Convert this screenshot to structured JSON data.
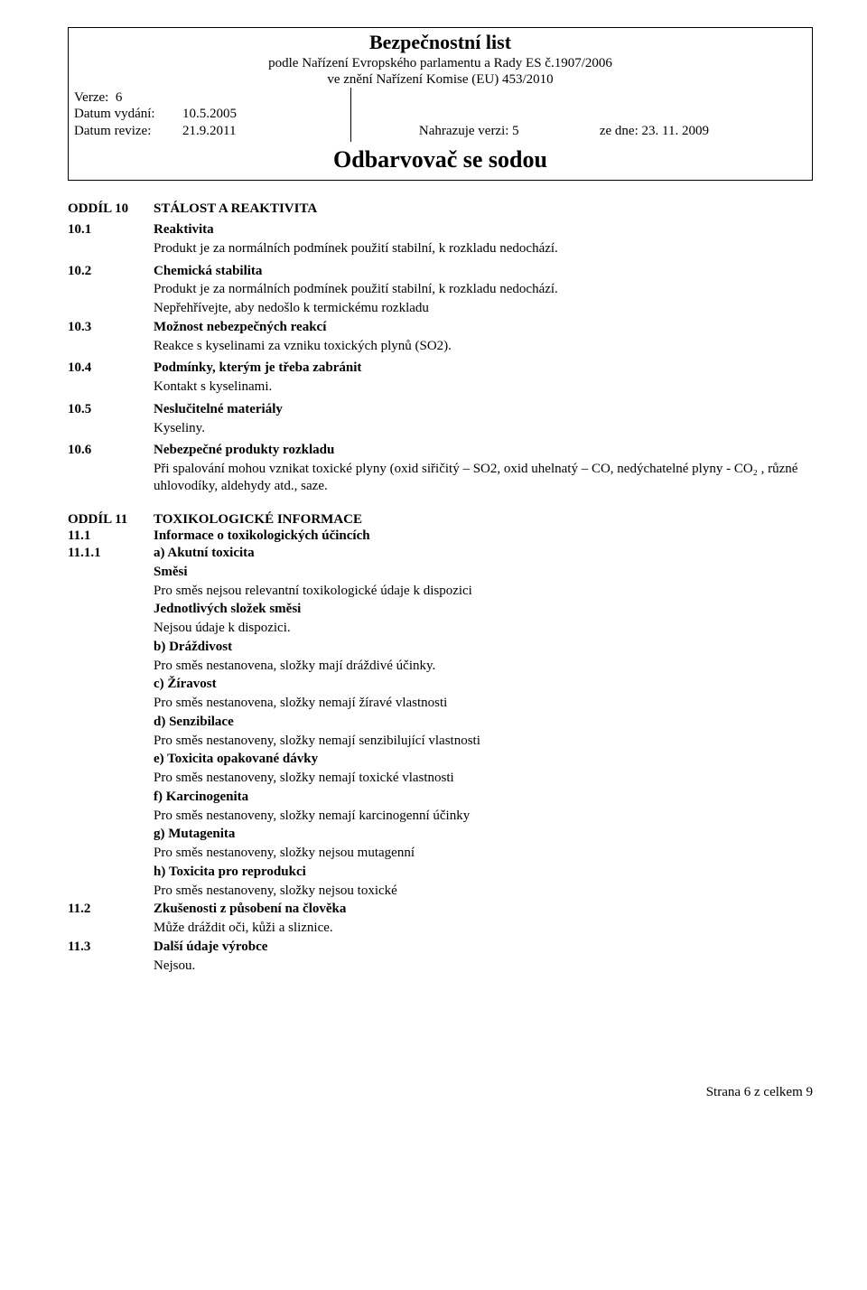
{
  "header": {
    "title": "Bezpečnostní list",
    "sub1": "podle Nařízení Evropského parlamentu a Rady ES č.1907/2006",
    "sub2": "ve znění Nařízení Komise (EU) 453/2010",
    "version_label": "Verze:",
    "version_value": "6",
    "issue_label": "Datum vydání:",
    "issue_value": "10.5.2005",
    "rev_label": "Datum revize:",
    "rev_value": "21.9.2011",
    "replaces_label": "Nahrazuje verzi: 5",
    "replaces_date_label": "ze dne: 23. 11. 2009",
    "product": "Odbarvovač se sodou"
  },
  "s10": {
    "heading_key": "ODDÍL 10",
    "heading": "STÁLOST A REAKTIVITA",
    "i1_key": "10.1",
    "i1_title": "Reaktivita",
    "i1_text": "Produkt je za normálních podmínek použití stabilní, k rozkladu nedochází.",
    "i2_key": "10.2",
    "i2_title": "Chemická stabilita",
    "i2_text1": "Produkt je za normálních podmínek použití stabilní, k rozkladu nedochází.",
    "i2_text2": "Nepřehřívejte, aby nedošlo k termickému rozkladu",
    "i3_key": "10.3",
    "i3_title": "Možnost nebezpečných reakcí",
    "i3_text": "Reakce s kyselinami za vzniku toxických plynů (SO2).",
    "i4_key": "10.4",
    "i4_title": "Podmínky, kterým je třeba zabránit",
    "i4_text": "Kontakt s kyselinami.",
    "i5_key": "10.5",
    "i5_title": "Neslučitelné materiály",
    "i5_text": "Kyseliny.",
    "i6_key": "10.6",
    "i6_title": "Nebezpečné produkty rozkladu",
    "i6_text": "Při spalování mohou vznikat toxické plyny (oxid siřičitý – SO2, oxid uhelnatý – CO, nedýchatelné plyny - CO₂ , různé uhlovodíky, aldehydy atd., saze."
  },
  "s11": {
    "heading_key": "ODDÍL 11",
    "heading": "TOXIKOLOGICKÉ INFORMACE",
    "i1_key": "11.1",
    "i1_title": "Informace o toxikologických účincích",
    "i11_key": "11.1.1",
    "a_title": "a) Akutní toxicita",
    "a_mix_label": "Směsi",
    "a_mix_text": "Pro směs nejsou relevantní toxikologické údaje k dispozici",
    "a_comp_label": "Jednotlivých složek směsi",
    "a_comp_text": "Nejsou údaje k dispozici.",
    "b_title": "b) Dráždivost",
    "b_text": "Pro směs nestanovena, složky mají dráždivé účinky.",
    "c_title": "c) Žíravost",
    "c_text": "Pro směs nestanovena, složky nemají žíravé vlastnosti",
    "d_title": "d) Senzibilace",
    "d_text": "Pro směs nestanoveny, složky nemají senzibilující vlastnosti",
    "e_title": "e) Toxicita opakované dávky",
    "e_text": "Pro směs nestanoveny, složky nemají toxické vlastnosti",
    "f_title": "f) Karcinogenita",
    "f_text": "Pro směs nestanoveny, složky nemají karcinogenní účinky",
    "g_title": "g) Mutagenita",
    "g_text": "Pro směs nestanoveny, složky nejsou mutagenní",
    "h_title": "h) Toxicita pro reprodukci",
    "h_text": "Pro směs nestanoveny, složky nejsou toxické",
    "i2_key": "11.2",
    "i2_title": "Zkušenosti z působení na člověka",
    "i2_text": "Může dráždit oči, kůži a sliznice.",
    "i3_key": "11.3",
    "i3_title": "Další údaje výrobce",
    "i3_text": "Nejsou."
  },
  "footer": {
    "page": "Strana 6 z celkem 9"
  }
}
